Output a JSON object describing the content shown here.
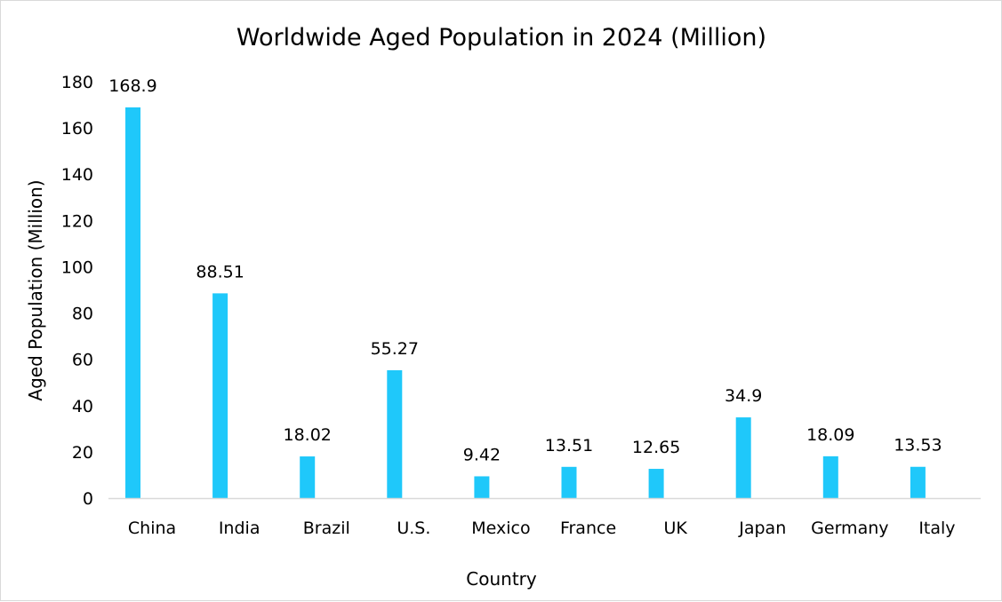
{
  "chart_data": {
    "type": "bar",
    "title": "Worldwide Aged Population in 2024 (Million)",
    "xlabel": "Country",
    "ylabel": "Aged Population (Million)",
    "categories": [
      "China",
      "India",
      "Brazil",
      "U.S.",
      "Mexico",
      "France",
      "UK",
      "Japan",
      "Germany",
      "Italy"
    ],
    "values": [
      168.9,
      88.51,
      18.02,
      55.27,
      9.42,
      13.51,
      12.65,
      34.9,
      18.09,
      13.53
    ],
    "data_labels": [
      "168.9",
      "88.51",
      "18.02",
      "55.27",
      "9.42",
      "13.51",
      "12.65",
      "34.9",
      "18.09",
      "13.53"
    ],
    "ylim": [
      0,
      180
    ],
    "yticks": [
      0,
      20,
      40,
      60,
      80,
      100,
      120,
      140,
      160,
      180
    ],
    "grid": false,
    "legend": "none",
    "bar_color": "#1fc8fa",
    "axis_color": "#d9d9d9"
  }
}
